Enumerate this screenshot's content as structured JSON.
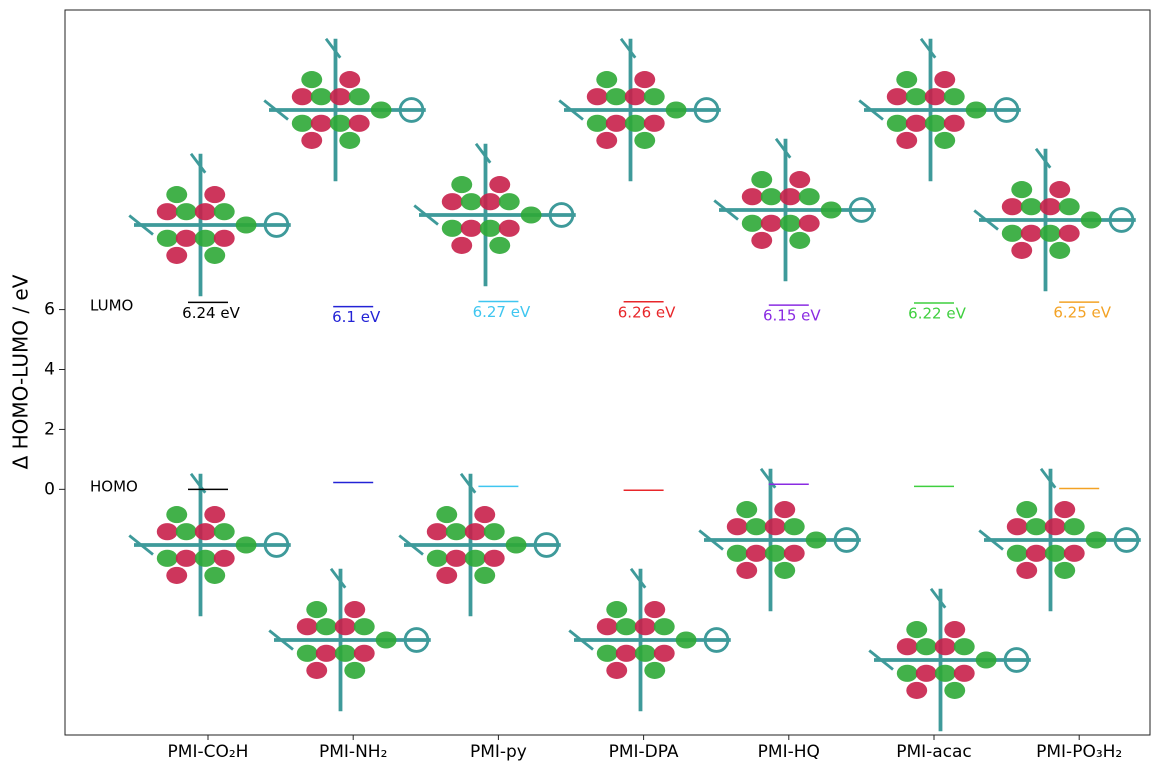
{
  "chart_data": {
    "type": "energy-levels",
    "y_label": "Δ HOMO-LUMO / eV",
    "annotations": {
      "lumo": "LUMO",
      "homo": "HOMO"
    },
    "categories": [
      "PMI-CO₂H",
      "PMI-NH₂",
      "PMI-py",
      "PMI-DPA",
      "PMI-HQ",
      "PMI-acac",
      "PMI-PO₃H₂"
    ],
    "colors": [
      "#000000",
      "#2323d6",
      "#3fc6f0",
      "#e8262a",
      "#8a2be2",
      "#3fcf3f",
      "#f3a224"
    ],
    "series": [
      {
        "name": "HOMO",
        "values": [
          0.0,
          0.23,
          0.1,
          -0.03,
          0.17,
          0.1,
          0.03
        ]
      },
      {
        "name": "LUMO",
        "values": [
          6.24,
          6.1,
          6.27,
          6.26,
          6.15,
          6.22,
          6.25
        ],
        "value_labels": [
          "6.24 eV",
          "6.1 eV",
          "6.27 eV",
          "6.26 eV",
          "6.15 eV",
          "6.22 eV",
          "6.25 eV"
        ]
      }
    ],
    "ylim": [
      -8.2,
      16
    ],
    "yticks": [
      0,
      2,
      4,
      6
    ]
  }
}
